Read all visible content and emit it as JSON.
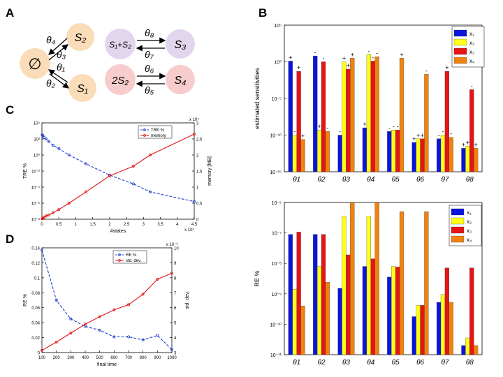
{
  "panel_labels": {
    "a": "A",
    "b": "B",
    "c": "C",
    "d": "D"
  },
  "colors": {
    "blue": "#0a14dc",
    "yellow": "#ffff19",
    "red": "#e61414",
    "orange": "#f0820f",
    "node_orange": "#fbdcb9",
    "node_purple": "#e2d6ee",
    "node_pink": "#f7cccc",
    "line_blue": "#1f3fcf",
    "line_red": "#e01414"
  },
  "diagram": {
    "nodes": {
      "empty": "∅",
      "s2": "S₂",
      "s1": "S₁",
      "s1s2": "S₁+S₂",
      "s3": "S₃",
      "two_s2": "2S₂",
      "s4": "S₄"
    },
    "params": {
      "t4": "θ₄",
      "t3": "θ₃",
      "t1": "θ₁",
      "t2": "θ₂",
      "t8": "θ₈",
      "t7": "θ₇",
      "t6": "θ₆",
      "t5": "θ₅"
    }
  },
  "chart_data": [
    {
      "id": "C",
      "type": "line",
      "xlabel": "#states",
      "x_exponent": "x 10⁵",
      "xticks": [
        "0",
        "0.5",
        "1",
        "1.5",
        "2",
        "2.5",
        "3",
        "3.5",
        "4",
        "4.5"
      ],
      "xlim": [
        0,
        4.5
      ],
      "ylabel_left": "TRE %",
      "ylabel_right": "memory [MB]",
      "right_exponent": "x 10⁴",
      "left_ticks": [
        "10⁻⁸",
        "10⁻⁶",
        "10⁻⁴",
        "10⁻²",
        "10⁰",
        "10²",
        "10⁴"
      ],
      "left_ylim_log": [
        -8,
        4
      ],
      "right_ticks": [
        "0",
        "0.5",
        "1",
        "1.5",
        "2",
        "2.5",
        "3"
      ],
      "right_ylim": [
        0,
        3
      ],
      "legend": [
        "TRE %",
        "memory"
      ],
      "series": [
        {
          "name": "TRE %",
          "axis": "left",
          "scale": "log10",
          "x": [
            0.01,
            0.03,
            0.06,
            0.12,
            0.2,
            0.33,
            0.5,
            0.8,
            1.3,
            2.0,
            2.7,
            3.2,
            4.5
          ],
          "log10_values": [
            2.5,
            2.4,
            2.2,
            2.0,
            1.7,
            1.2,
            0.8,
            0.0,
            -1.1,
            -2.5,
            -3.6,
            -4.6,
            -5.8
          ]
        },
        {
          "name": "memory",
          "axis": "right",
          "scale": "linear",
          "x": [
            0.01,
            0.03,
            0.06,
            0.12,
            0.2,
            0.33,
            0.5,
            0.8,
            1.3,
            2.0,
            2.7,
            3.2,
            4.5
          ],
          "values": [
            0.01,
            0.03,
            0.06,
            0.1,
            0.13,
            0.2,
            0.3,
            0.5,
            0.85,
            1.35,
            1.65,
            2.0,
            2.65
          ]
        }
      ]
    },
    {
      "id": "D",
      "type": "line",
      "xlabel": "final time",
      "x": [
        100,
        200,
        300,
        400,
        500,
        600,
        700,
        800,
        900,
        1000
      ],
      "xlim": [
        100,
        1000
      ],
      "xticks": [
        "100",
        "200",
        "300",
        "400",
        "500",
        "600",
        "700",
        "800",
        "900",
        "1000"
      ],
      "ylabel_left": "RE %",
      "ylabel_right": "std. dev.",
      "right_exponent": "x 10⁻³",
      "left_ticks": [
        "0",
        "0.02",
        "0.04",
        "0.06",
        "0.08",
        "0.1",
        "0.12",
        "0.14"
      ],
      "left_ylim": [
        0,
        0.14
      ],
      "right_ticks": [
        "3",
        "4",
        "5",
        "6",
        "7",
        "8",
        "9",
        "10"
      ],
      "right_ylim": [
        3,
        10
      ],
      "legend": [
        "RE %",
        "std. dev."
      ],
      "series": [
        {
          "name": "RE %",
          "axis": "left",
          "values": [
            0.137,
            0.07,
            0.045,
            0.035,
            0.03,
            0.021,
            0.021,
            0.017,
            0.023,
            0.004
          ]
        },
        {
          "name": "std. dev.",
          "axis": "right",
          "values": [
            3.15,
            3.7,
            4.3,
            4.9,
            5.4,
            5.85,
            6.2,
            6.9,
            7.9,
            8.3
          ]
        }
      ]
    },
    {
      "id": "B_top",
      "type": "bar",
      "scale": "log10",
      "ylabel": "estimated sensitivities",
      "yticks": [
        "10⁻¹⁵",
        "10⁻¹⁰",
        "10⁻⁵",
        "10⁰",
        "10⁵"
      ],
      "ylim_log": [
        -15,
        5
      ],
      "categories": [
        "θ1",
        "θ2",
        "θ3",
        "θ4",
        "θ5",
        "θ6",
        "θ7",
        "θ8"
      ],
      "legend": [
        "x₁",
        "x₂",
        "x₃",
        "x₄"
      ],
      "series": [
        {
          "name": "x1",
          "log10_values": [
            0.1,
            0.8,
            -10.0,
            -9.0,
            -9.5,
            -11.0,
            -10.5,
            -11.8
          ],
          "signs": [
            "+",
            "-",
            "-",
            "+",
            "-",
            "+",
            "-",
            "+"
          ]
        },
        {
          "name": "x2",
          "log10_values": [
            -10.0,
            -9.3,
            0.0,
            1.0,
            -9.3,
            -10.5,
            -10.0,
            -11.5
          ],
          "signs": [
            "-",
            "+",
            "+",
            "-",
            "-",
            "+",
            "-",
            "+"
          ]
        },
        {
          "name": "x3",
          "log10_values": [
            -1.3,
            0.0,
            -1.0,
            0.1,
            -9.3,
            -10.5,
            -1.3,
            -3.8
          ],
          "signs": [
            "+",
            "-",
            "+",
            "-",
            "-",
            "+",
            "+",
            "-"
          ]
        },
        {
          "name": "x4",
          "log10_values": [
            -10.6,
            -9.5,
            0.5,
            0.7,
            0.5,
            -1.7,
            -10.3,
            -11.8
          ],
          "signs": [
            "+",
            "-",
            "+",
            "-",
            "+",
            "-",
            "-",
            "+"
          ]
        }
      ]
    },
    {
      "id": "B_bottom",
      "type": "bar",
      "scale": "log10",
      "ylabel": "RE %",
      "yticks": [
        "10⁻¹¹",
        "10⁻¹⁰",
        "10⁻⁹",
        "10⁻⁸",
        "10⁻⁷",
        "10⁻⁶"
      ],
      "ylim_log": [
        -11,
        -6
      ],
      "categories": [
        "θ1",
        "θ2",
        "θ3",
        "θ4",
        "θ5",
        "θ6",
        "θ7",
        "θ8"
      ],
      "legend": [
        "x₁",
        "x₂",
        "x₃",
        "x₄"
      ],
      "series": [
        {
          "name": "x1",
          "log10_values": [
            -7.05,
            -7.05,
            -8.82,
            -8.1,
            -8.45,
            -9.75,
            -9.28,
            -10.7
          ]
        },
        {
          "name": "x2",
          "log10_values": [
            -8.85,
            -8.1,
            -6.45,
            -6.45,
            -8.1,
            -9.38,
            -9.02,
            -10.45
          ]
        },
        {
          "name": "x3",
          "log10_values": [
            -6.97,
            -7.05,
            -7.72,
            -7.85,
            -8.12,
            -9.38,
            -8.15,
            -8.15
          ]
        },
        {
          "name": "x4",
          "log10_values": [
            -9.4,
            -8.62,
            -6.0,
            -6.0,
            -6.3,
            -6.3,
            -9.28,
            -10.7
          ]
        }
      ]
    }
  ]
}
